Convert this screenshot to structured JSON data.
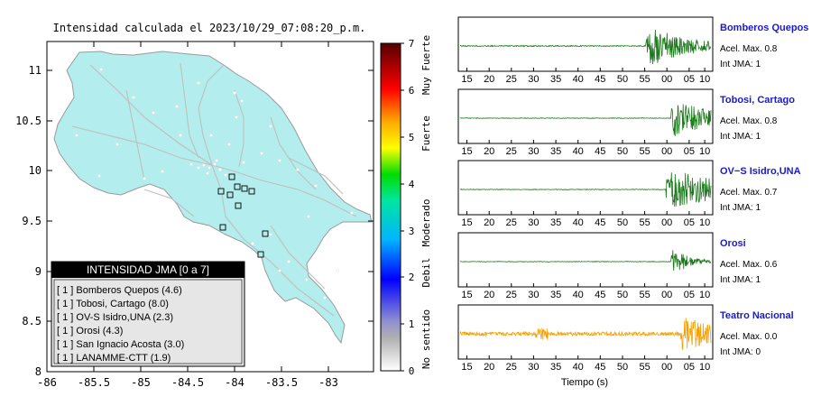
{
  "map": {
    "title": "Intensidad calculada el 2023/10/29_07:08:20_p.m.",
    "x_ticks": [
      "-86",
      "-85.5",
      "-85",
      "-84.5",
      "-84",
      "-83.5",
      "-83"
    ],
    "y_ticks": [
      "11",
      "10.5",
      "10",
      "9.5",
      "9",
      "8.5",
      "8"
    ],
    "land_color": "#b3eded",
    "legend": {
      "header": "INTENSIDAD JMA [0 a 7]",
      "items": [
        "[ 1 ]  Bomberos Quepos (4.6)",
        "[ 1 ]  Tobosi, Cartago (8.0)",
        "[ 1 ]  OV-S Isidro,UNA (2.3)",
        "[ 1 ]  Orosi (4.3)",
        "[ 1 ]  San Ignacio Acosta (3.0)",
        "[ 1 ]  LANAMME-CTT (1.9)"
      ]
    }
  },
  "colorbar": {
    "ticks": [
      "7",
      "6",
      "5",
      "4",
      "3",
      "2",
      "1",
      "0"
    ],
    "labels": [
      "Muy Fuerte",
      "Fuerte",
      "Moderado",
      "Debil",
      "No sentido"
    ]
  },
  "waveforms": {
    "x_ticks": [
      "15",
      "20",
      "25",
      "30",
      "35",
      "40",
      "45",
      "50",
      "55",
      "00",
      "05",
      "10"
    ],
    "xlabel": "Tiempo (s)",
    "panels": [
      {
        "station": "Bomberos Quepos",
        "accel": "Acel. Max. 0.8",
        "int": "Int JMA: 1",
        "color": "#1a7a1a",
        "onset": 0.74,
        "amp": 24,
        "noise": 0.6,
        "decay": 0.5
      },
      {
        "station": "Tobosi, Cartago",
        "accel": "Acel. Max. 0.8",
        "int": "Int JMA: 1",
        "color": "#1a7a1a",
        "onset": 0.84,
        "amp": 22,
        "noise": 0.3,
        "decay": 0.3
      },
      {
        "station": "OV−S Isidro,UNA",
        "accel": "Acel. Max. 0.7",
        "int": "Int JMA: 1",
        "color": "#1a7a1a",
        "onset": 0.82,
        "amp": 24,
        "noise": 0.3,
        "decay": 0.2
      },
      {
        "station": "Orosi",
        "accel": "Acel. Max. 0.6",
        "int": "Int JMA: 1",
        "color": "#1a7a1a",
        "onset": 0.84,
        "amp": 20,
        "noise": 0.3,
        "decay": 0.9
      },
      {
        "station": "Teatro Nacional",
        "accel": "Acel. Max. 0.0",
        "int": "Int JMA: 0",
        "color": "#f5a000",
        "onset": 0.88,
        "amp": 20,
        "noise": 2.2,
        "decay": 0.3
      }
    ]
  },
  "chart_data": {
    "type": "line",
    "title": "",
    "xlabel": "Tiempo (s)",
    "ylabel": "",
    "x_ticks": [
      "15",
      "20",
      "25",
      "30",
      "35",
      "40",
      "45",
      "50",
      "55",
      "00",
      "05",
      "10"
    ],
    "series": [
      {
        "name": "Bomberos Quepos",
        "accel_max": 0.8,
        "int_jma": 1
      },
      {
        "name": "Tobosi, Cartago",
        "accel_max": 0.8,
        "int_jma": 1
      },
      {
        "name": "OV−S Isidro,UNA",
        "accel_max": 0.7,
        "int_jma": 1
      },
      {
        "name": "Orosi",
        "accel_max": 0.6,
        "int_jma": 1
      },
      {
        "name": "Teatro Nacional",
        "accel_max": 0.0,
        "int_jma": 0
      }
    ]
  }
}
